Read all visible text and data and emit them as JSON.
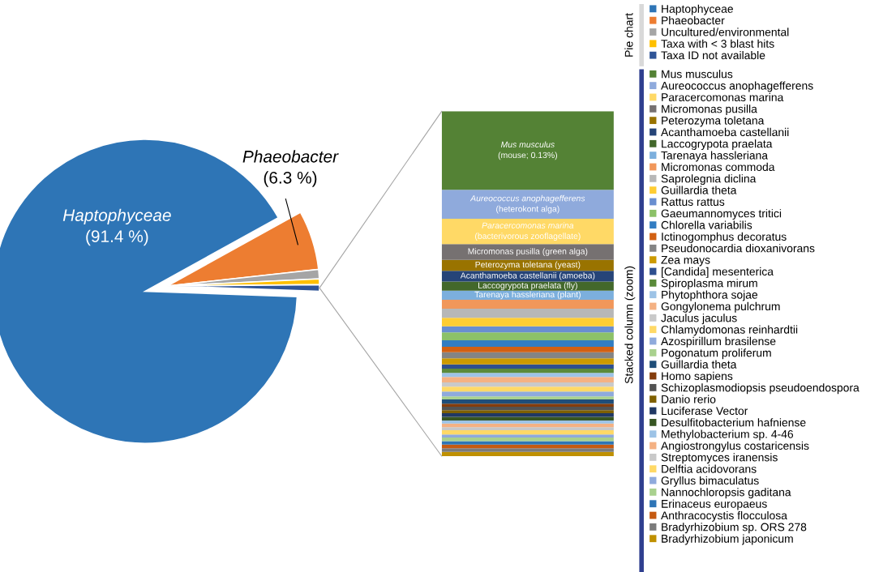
{
  "chart_data": [
    {
      "type": "pie",
      "categories": [
        "Haptophyceae",
        "Phaeobacter",
        "Uncultured/environmental",
        "Taxa with < 3 blast hits",
        "Taxa ID not available"
      ],
      "values": [
        91.4,
        6.3,
        1.0,
        0.6,
        0.7
      ],
      "colors": [
        "#2e75b6",
        "#ed7d31",
        "#a5a5a5",
        "#ffc000",
        "#2f5597"
      ],
      "value_labels": [
        "Haptophyceae\n(91.4 %)",
        "Phaeobacter\n(6.3 %)",
        null,
        null,
        null
      ],
      "legend": "right",
      "legend_title": "Pie chart"
    },
    {
      "type": "bar",
      "stacked": true,
      "categories": [
        null
      ],
      "ylim": [
        0,
        0.571
      ],
      "tick_labels": false,
      "legend": "right",
      "legend_title": "Stacked column (zoom)",
      "series": [
        {
          "name": "Bradyrhizobium japonicum",
          "color": "#bf9000",
          "values": [
            0.007
          ]
        },
        {
          "name": "Bradyrhizobium sp. ORS 278",
          "color": "#7b7b7b",
          "values": [
            0.006
          ]
        },
        {
          "name": "Anthracocystis flocculosa",
          "color": "#c55a11",
          "values": [
            0.006
          ]
        },
        {
          "name": "Erinaceus europaeus",
          "color": "#2e75b6",
          "values": [
            0.006
          ]
        },
        {
          "name": "Nannochloropsis gaditana",
          "color": "#a9d18e",
          "values": [
            0.006
          ]
        },
        {
          "name": "Gryllus bimaculatus",
          "color": "#8faadc",
          "values": [
            0.005
          ]
        },
        {
          "name": "Delftia acidovorans",
          "color": "#ffd966",
          "values": [
            0.007
          ]
        },
        {
          "name": "Streptomyces iranensis",
          "color": "#c9c9c9",
          "values": [
            0.005
          ]
        },
        {
          "name": "Angiostrongylus costaricensis",
          "color": "#f4b183",
          "values": [
            0.006
          ]
        },
        {
          "name": "Methylobacterium sp. 4-46",
          "color": "#9dc3e6",
          "values": [
            0.005
          ]
        },
        {
          "name": "Desulfitobacterium hafniense",
          "color": "#375623",
          "values": [
            0.006
          ]
        },
        {
          "name": "Luciferase Vector",
          "color": "#203864",
          "values": [
            0.006
          ]
        },
        {
          "name": "Danio rerio",
          "color": "#7f6000",
          "values": [
            0.005
          ]
        },
        {
          "name": "Schizoplasmodiopsis pseudoendospora",
          "color": "#525252",
          "values": [
            0.006
          ]
        },
        {
          "name": "Homo sapiens",
          "color": "#843c0c",
          "values": [
            0.005
          ]
        },
        {
          "name": "Guillardia theta",
          "color": "#1f4e79",
          "values": [
            0.007
          ]
        },
        {
          "name": "Pogonatum proliferum",
          "color": "#a9d18e",
          "values": [
            0.005
          ]
        },
        {
          "name": "Azospirillum brasilense",
          "color": "#8faadc",
          "values": [
            0.008
          ]
        },
        {
          "name": "Chlamydomonas reinhardtii",
          "color": "#ffd966",
          "values": [
            0.008
          ]
        },
        {
          "name": "Jaculus jaculus",
          "color": "#c9c9c9",
          "values": [
            0.007
          ]
        },
        {
          "name": "Gongylonema pulchrum",
          "color": "#f4b183",
          "values": [
            0.009
          ]
        },
        {
          "name": "Phytophthora sojae",
          "color": "#9dc3e6",
          "values": [
            0.007
          ]
        },
        {
          "name": "Spiroplasma mirum",
          "color": "#5a8a3a",
          "values": [
            0.007
          ]
        },
        {
          "name": "[Candida] mesenterica",
          "color": "#2e4f8f",
          "values": [
            0.007
          ]
        },
        {
          "name": "Zea mays",
          "color": "#cc9a00",
          "values": [
            0.01
          ]
        },
        {
          "name": "Pseudonocardia dioxanivorans",
          "color": "#848484",
          "values": [
            0.01
          ]
        },
        {
          "name": "Ictinogomphus decoratus",
          "color": "#d26012",
          "values": [
            0.009
          ]
        },
        {
          "name": "Chlorella variabilis",
          "color": "#327dc2",
          "values": [
            0.011
          ]
        },
        {
          "name": "Gaeumannomyces tritici",
          "color": "#8cc168",
          "values": [
            0.013
          ]
        },
        {
          "name": "Rattus rattus",
          "color": "#698ed0",
          "values": [
            0.01
          ]
        },
        {
          "name": "Guillardia theta",
          "color": "#ffcd33",
          "values": [
            0.014
          ]
        },
        {
          "name": "Saprolegnia diclina",
          "color": "#b7b7b7",
          "values": [
            0.015
          ]
        },
        {
          "name": "Micromonas commoda",
          "color": "#f1975a",
          "values": [
            0.015
          ]
        },
        {
          "name": "Tarenaya hassleriana",
          "color": "#7cafdd",
          "values": [
            0.015
          ],
          "value_labels": [
            "Tarenaya hassleriana (plant)"
          ]
        },
        {
          "name": "Laccogrypota praelata",
          "color": "#43682b",
          "values": [
            0.015
          ],
          "value_labels": [
            "Laccogrypota praelata (fly)"
          ]
        },
        {
          "name": "Acanthamoeba castellanii",
          "color": "#264478",
          "values": [
            0.018
          ],
          "value_labels": [
            "Acanthamoeba castellanii (amoeba)"
          ]
        },
        {
          "name": "Peterozyma toletana",
          "color": "#997300",
          "values": [
            0.018
          ],
          "value_labels": [
            "Peterozyma toletana (yeast)"
          ]
        },
        {
          "name": "Micromonas pusilla",
          "color": "#767171",
          "values": [
            0.026
          ],
          "value_labels": [
            "Micromonas pusilla (green alga)"
          ]
        },
        {
          "name": "Paracercomonas marina",
          "color": "#ffd966",
          "values": [
            0.042
          ],
          "value_labels": [
            "Paracercomonas marina\n(bacterivorous zooflagellate)"
          ]
        },
        {
          "name": "Aureococcus anophagefferens",
          "color": "#8faadc",
          "values": [
            0.048
          ],
          "value_labels": [
            "Aureococcus anophagefferens\n(heterokont alga)"
          ]
        },
        {
          "name": "Mus musculus",
          "color": "#548235",
          "values": [
            0.13
          ],
          "value_labels": [
            "Mus musculus\n(mouse; 0.13%)"
          ]
        }
      ]
    }
  ]
}
